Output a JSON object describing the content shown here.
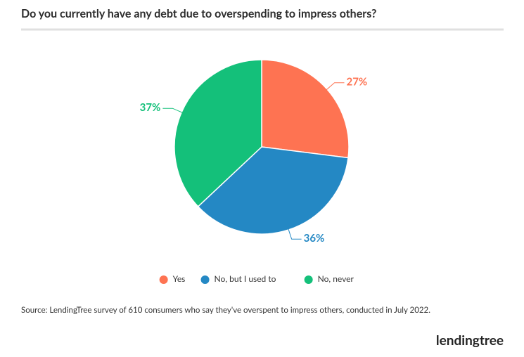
{
  "chart_data": {
    "type": "pie",
    "title": "Do you currently have any debt due to overspending to impress others?",
    "categories": [
      "Yes",
      "No, but I used to",
      "No, never"
    ],
    "values": [
      27,
      36,
      37
    ],
    "value_labels": [
      "27%",
      "36%",
      "37%"
    ],
    "colors": [
      "#fe7352",
      "#2488c4",
      "#14c07a"
    ],
    "legend": "bottom",
    "source": "Source: LendingTree  survey of 610 consumers who say they've overspent to impress others, conducted in July 2022.",
    "logo": "lendingtree"
  }
}
